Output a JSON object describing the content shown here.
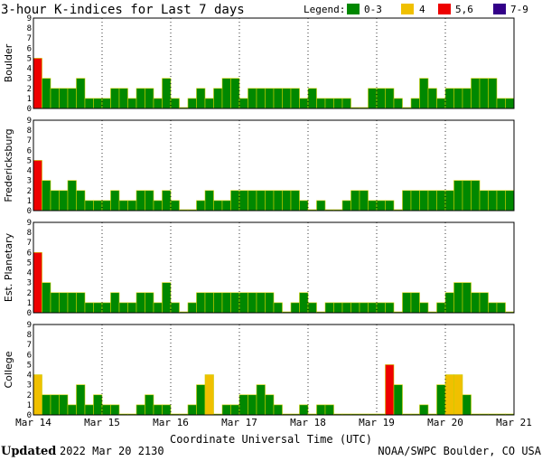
{
  "header": {
    "title": "3-hour K-indices for Last 7 days",
    "legend_label": "Legend:",
    "legend": [
      {
        "label": "0-3",
        "color": "#008800"
      },
      {
        "label": "4",
        "color": "#f0c000"
      },
      {
        "label": "5,6",
        "color": "#ee0000"
      },
      {
        "label": "7-9",
        "color": "#330088"
      }
    ]
  },
  "footer": {
    "updated_label": "Updated",
    "updated_value": "2022 Mar 20 2130",
    "credit": "NOAA/SWPC Boulder, CO USA"
  },
  "colors": {
    "low": "#008800",
    "k4": "#f0c000",
    "k56": "#ee0000",
    "k79": "#330088",
    "bar_edge": "#cccc00",
    "grid": "#000000"
  },
  "chart_data": [
    {
      "type": "bar",
      "ylabel": "Boulder",
      "ylim": [
        0,
        9
      ],
      "yticks": [
        "0",
        "1",
        "2",
        "3",
        "4",
        "5",
        "6",
        "7",
        "8",
        "9"
      ],
      "xticks": [
        "Mar 14",
        "Mar 15",
        "Mar 16",
        "Mar 17",
        "Mar 18",
        "Mar 19",
        "Mar 20",
        "Mar 21"
      ],
      "values": [
        5,
        3,
        2,
        2,
        2,
        3,
        1,
        1,
        1,
        2,
        2,
        1,
        2,
        2,
        1,
        3,
        1,
        0,
        1,
        2,
        1,
        2,
        3,
        3,
        1,
        2,
        2,
        2,
        2,
        2,
        2,
        1,
        2,
        1,
        1,
        1,
        1,
        0,
        0,
        2,
        2,
        2,
        1,
        0,
        1,
        3,
        2,
        1,
        2,
        2,
        2,
        3,
        3,
        3,
        1,
        1,
        2,
        1,
        0
      ]
    },
    {
      "type": "bar",
      "ylabel": "Fredericksburg",
      "ylim": [
        0,
        9
      ],
      "yticks": [
        "0",
        "1",
        "2",
        "3",
        "4",
        "5",
        "6",
        "7",
        "8",
        "9"
      ],
      "xticks": [
        "Mar 14",
        "Mar 15",
        "Mar 16",
        "Mar 17",
        "Mar 18",
        "Mar 19",
        "Mar 20",
        "Mar 21"
      ],
      "values": [
        5,
        3,
        2,
        2,
        3,
        2,
        1,
        1,
        1,
        2,
        1,
        1,
        2,
        2,
        1,
        2,
        1,
        0,
        0,
        1,
        2,
        1,
        1,
        2,
        2,
        2,
        2,
        2,
        2,
        2,
        2,
        1,
        0,
        1,
        0,
        0,
        1,
        2,
        2,
        1,
        1,
        1,
        0,
        2,
        2,
        2,
        2,
        2,
        2,
        3,
        3,
        3,
        2,
        2,
        2,
        2,
        1,
        0
      ]
    },
    {
      "type": "bar",
      "ylabel": "Est. Planetary",
      "ylim": [
        0,
        9
      ],
      "yticks": [
        "0",
        "1",
        "2",
        "3",
        "4",
        "5",
        "6",
        "7",
        "8",
        "9"
      ],
      "xticks": [
        "Mar 14",
        "Mar 15",
        "Mar 16",
        "Mar 17",
        "Mar 18",
        "Mar 19",
        "Mar 20",
        "Mar 21"
      ],
      "values": [
        6,
        3,
        2,
        2,
        2,
        2,
        1,
        1,
        1,
        2,
        1,
        1,
        2,
        2,
        1,
        3,
        1,
        0,
        1,
        2,
        2,
        2,
        2,
        2,
        2,
        2,
        2,
        2,
        1,
        0,
        1,
        2,
        1,
        0,
        1,
        1,
        1,
        1,
        1,
        1,
        1,
        1,
        0,
        2,
        2,
        1,
        0,
        1,
        2,
        3,
        3,
        2,
        2,
        1,
        1,
        0,
        0
      ]
    },
    {
      "type": "bar",
      "ylabel": "College",
      "ylim": [
        0,
        9
      ],
      "yticks": [
        "0",
        "1",
        "2",
        "3",
        "4",
        "5",
        "6",
        "7",
        "8",
        "9"
      ],
      "xticks": [
        "Mar 14",
        "Mar 15",
        "Mar 16",
        "Mar 17",
        "Mar 18",
        "Mar 19",
        "Mar 20",
        "Mar 21"
      ],
      "values": [
        4,
        2,
        2,
        2,
        1,
        3,
        1,
        2,
        1,
        1,
        0,
        0,
        1,
        2,
        1,
        1,
        0,
        0,
        1,
        3,
        4,
        0,
        1,
        1,
        2,
        2,
        3,
        2,
        1,
        0,
        0,
        1,
        0,
        1,
        1,
        0,
        0,
        0,
        0,
        0,
        0,
        5,
        3,
        0,
        0,
        1,
        0,
        3,
        4,
        4,
        2,
        0,
        0,
        0,
        0,
        0
      ]
    }
  ]
}
